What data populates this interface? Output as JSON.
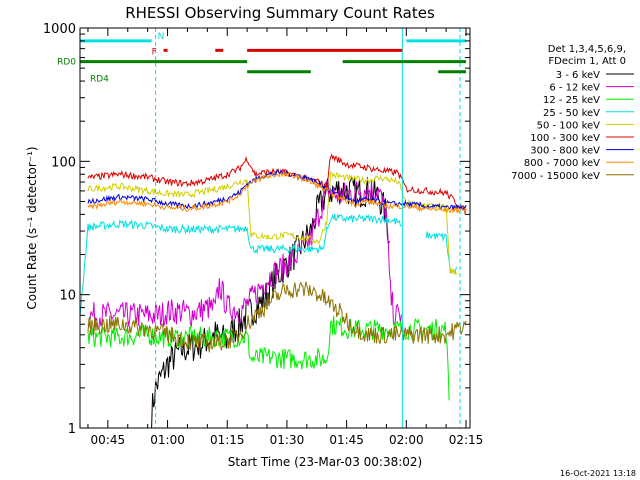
{
  "chart_data": {
    "type": "line",
    "title": "RHESSI Observing Summary Count Rates",
    "xlabel": "Start Time (23-Mar-03 00:38:02)",
    "ylabel": "Count Rate (s⁻¹ detector⁻¹)",
    "yscale": "log",
    "ylim": [
      1,
      1000
    ],
    "xlim_minutes": [
      38.0,
      136.0
    ],
    "x_unit": "minutes after 00:00 UT",
    "x_ticks": [
      {
        "t": 45,
        "label": "00:45"
      },
      {
        "t": 60,
        "label": "01:00"
      },
      {
        "t": 75,
        "label": "01:15"
      },
      {
        "t": 90,
        "label": "01:30"
      },
      {
        "t": 105,
        "label": "01:45"
      },
      {
        "t": 120,
        "label": "02:00"
      },
      {
        "t": 135,
        "label": "02:15"
      }
    ],
    "y_ticks": [
      {
        "v": 1,
        "label": "1"
      },
      {
        "v": 10,
        "label": "10"
      },
      {
        "v": 100,
        "label": "100"
      },
      {
        "v": 1000,
        "label": "1000"
      }
    ],
    "legend": {
      "placement": "right",
      "header": [
        "Det 1,3,4,5,6,9,",
        "FDecim 1, Att 0"
      ]
    },
    "series": [
      {
        "name": "3 - 6 keV",
        "color": "#000000",
        "noise": 0.12,
        "x": [
          38,
          48,
          55,
          56,
          57,
          60,
          63,
          68,
          72,
          75,
          76,
          78,
          80,
          84,
          87,
          90,
          93,
          96,
          98,
          100,
          103,
          106,
          108,
          110,
          113,
          115,
          116,
          117,
          118,
          120
        ],
        "y": [
          null,
          null,
          null,
          1.3,
          2.0,
          3.0,
          3.8,
          4.2,
          5.0,
          4.5,
          5.2,
          6.0,
          7.0,
          9.0,
          13,
          17,
          22,
          30,
          45,
          58,
          62,
          60,
          58,
          60,
          55,
          40,
          20,
          null,
          null,
          null
        ]
      },
      {
        "name": "6 - 12 keV",
        "color": "#d000d0",
        "noise": 0.1,
        "x": [
          38,
          40,
          48,
          55,
          58,
          60,
          63,
          66,
          70,
          72,
          73,
          75,
          76,
          78,
          80,
          83,
          86,
          90,
          93,
          96,
          98,
          100,
          103,
          106,
          110,
          113,
          115,
          116,
          117,
          119,
          120
        ],
        "y": [
          null,
          7.0,
          7.0,
          7.0,
          7.0,
          7.5,
          7.5,
          7.2,
          8.0,
          7.8,
          12,
          8.0,
          8.0,
          7.5,
          8.5,
          11,
          14,
          17,
          20,
          26,
          40,
          60,
          55,
          58,
          62,
          60,
          40,
          10,
          7.0,
          7.0,
          null
        ]
      },
      {
        "name": "12 - 25 keV",
        "color": "#00ee00",
        "noise": 0.08,
        "x": [
          38,
          40,
          48,
          55,
          58,
          63,
          68,
          75,
          78,
          80,
          81,
          86,
          90,
          96,
          100,
          101,
          106,
          110,
          115,
          120,
          125,
          130,
          131,
          133,
          135
        ],
        "y": [
          null,
          4.8,
          4.8,
          5.0,
          4.8,
          4.8,
          4.8,
          4.8,
          4.8,
          4.8,
          3.3,
          3.4,
          3.3,
          3.3,
          3.3,
          6.0,
          5.5,
          5.5,
          5.5,
          5.5,
          5.5,
          5.5,
          1.1,
          null,
          null
        ]
      },
      {
        "name": "25 - 50 keV",
        "color": "#00e0e0",
        "noise": 0.03,
        "x": [
          38,
          40,
          48,
          55,
          60,
          65,
          70,
          75,
          78,
          80,
          81,
          86,
          90,
          96,
          99,
          100,
          101,
          105,
          110,
          114,
          118,
          119,
          120,
          125,
          130,
          131,
          133,
          135
        ],
        "y": [
          7.0,
          32,
          34,
          33,
          31,
          31,
          31,
          31,
          31,
          32,
          22,
          22,
          22,
          22,
          22,
          30,
          38,
          37,
          37,
          37,
          35,
          30,
          null,
          28,
          27,
          15,
          15,
          null
        ]
      },
      {
        "name": "50 - 100 keV",
        "color": "#d0d000",
        "noise": 0.025,
        "x": [
          38,
          40,
          48,
          55,
          60,
          65,
          70,
          75,
          78,
          80,
          81,
          86,
          90,
          96,
          98,
          100,
          101,
          105,
          110,
          114,
          118,
          120,
          125,
          130,
          131,
          133,
          135
        ],
        "y": [
          null,
          62,
          65,
          60,
          57,
          56,
          60,
          65,
          70,
          72,
          28,
          27,
          28,
          26,
          25,
          35,
          80,
          75,
          72,
          75,
          70,
          48,
          47,
          45,
          15,
          15,
          null
        ]
      },
      {
        "name": "100 - 300 keV",
        "color": "#dd0000",
        "noise": 0.025,
        "x": [
          38,
          40,
          48,
          55,
          60,
          65,
          70,
          75,
          78,
          80,
          82,
          86,
          90,
          94,
          98,
          100,
          101,
          105,
          110,
          114,
          118,
          120,
          125,
          130,
          135
        ],
        "y": [
          null,
          75,
          80,
          76,
          70,
          68,
          72,
          80,
          88,
          105,
          80,
          84,
          82,
          75,
          70,
          65,
          110,
          95,
          90,
          85,
          82,
          62,
          60,
          58,
          42
        ]
      },
      {
        "name": "300 - 800 keV",
        "color": "#0000dd",
        "noise": 0.02,
        "x": [
          38,
          40,
          48,
          55,
          60,
          65,
          70,
          75,
          78,
          80,
          84,
          88,
          92,
          95,
          98,
          101,
          104,
          107,
          110,
          113,
          116,
          118,
          120,
          125,
          130,
          135
        ],
        "y": [
          null,
          50,
          54,
          52,
          48,
          46,
          48,
          53,
          58,
          68,
          78,
          82,
          80,
          75,
          68,
          60,
          54,
          50,
          52,
          50,
          48,
          48,
          48,
          46,
          45,
          45
        ]
      },
      {
        "name": "800 - 7000 keV",
        "color": "#ff8c00",
        "noise": 0.02,
        "x": [
          38,
          40,
          48,
          55,
          60,
          65,
          70,
          75,
          78,
          80,
          84,
          88,
          92,
          95,
          98,
          101,
          104,
          107,
          110,
          113,
          116,
          118,
          120,
          125,
          130,
          135
        ],
        "y": [
          null,
          45,
          50,
          48,
          45,
          44,
          46,
          50,
          56,
          66,
          76,
          80,
          78,
          72,
          65,
          58,
          52,
          48,
          50,
          48,
          46,
          46,
          46,
          44,
          43,
          43
        ]
      },
      {
        "name": "7000 - 15000 keV",
        "color": "#8b7000",
        "noise": 0.07,
        "x": [
          38,
          40,
          48,
          55,
          60,
          65,
          70,
          75,
          78,
          80,
          83,
          86,
          90,
          94,
          97,
          100,
          103,
          106,
          110,
          115,
          120,
          125,
          130,
          135
        ],
        "y": [
          null,
          5.8,
          6.0,
          5.6,
          5.0,
          4.5,
          4.3,
          4.5,
          5.0,
          6.0,
          7.5,
          9.0,
          11,
          11,
          10.5,
          9.0,
          7.5,
          6.0,
          5.0,
          5.0,
          5.0,
          5.0,
          5.0,
          6.0
        ]
      }
    ],
    "status_bars": [
      {
        "label": "N",
        "color": "#00e0e0",
        "level": 800,
        "segments": [
          [
            38,
            56
          ],
          [
            120,
            135
          ]
        ]
      },
      {
        "label": "F",
        "color": "#dd0000",
        "level": 680,
        "segments": [
          [
            59,
            60
          ],
          [
            72,
            74
          ],
          [
            80,
            119
          ]
        ]
      },
      {
        "label": "RD0",
        "color": "#008000",
        "level": 560,
        "segments": [
          [
            38,
            80
          ],
          [
            104,
            135
          ]
        ]
      },
      {
        "label": "RD4",
        "color": "#008000",
        "level": 470,
        "segments": [
          [
            80,
            96
          ],
          [
            128,
            135
          ]
        ]
      }
    ],
    "vertical_lines": [
      {
        "t": 38.0,
        "color": "#00e0e0",
        "style": "solid"
      },
      {
        "t": 57.0,
        "color": "#00e0e0",
        "style": "dashed"
      },
      {
        "t": 119.0,
        "color": "#00e0e0",
        "style": "solid"
      },
      {
        "t": 133.5,
        "color": "#00e0e0",
        "style": "dashed"
      }
    ],
    "footer_timestamp": "16-Oct-2021 13:18"
  }
}
